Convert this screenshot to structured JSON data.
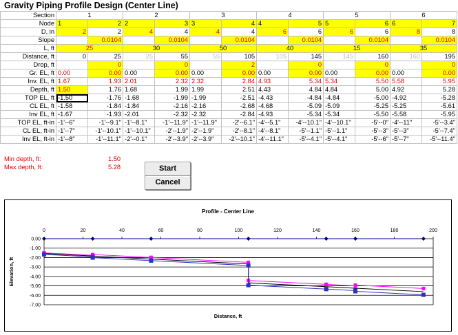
{
  "title": "Gravity Piping Profile Design (Center Line)",
  "row_labels": [
    "Section",
    "Node",
    "D, in",
    "Slope",
    "L, ft",
    "Distance, ft",
    "Drop, ft",
    "Gr. EL, ft",
    "Inv. EL, ft",
    "Depth, ft",
    "TOP EL, ft",
    "CL EL, ft",
    "Inv EL, ft",
    "TOP EL, ft-in",
    "CL EL, ft-in",
    "Inv EL, ft-in"
  ],
  "sections": [
    "1",
    "2",
    "3",
    "4",
    "5",
    "6"
  ],
  "nodes": [
    "1",
    "2",
    "2",
    "3",
    "3",
    "4",
    "4",
    "5",
    "5",
    "6",
    "6",
    "7"
  ],
  "d_in": [
    "2",
    "2",
    "4",
    "4",
    "4",
    "4",
    "6",
    "6",
    "6",
    "6",
    "8",
    "8"
  ],
  "slope": [
    "0.0104",
    "0.0104",
    "0.0104",
    "0.0104",
    "0.0104",
    "0.0104"
  ],
  "l_ft": [
    "25",
    "30",
    "50",
    "40",
    "15",
    "35"
  ],
  "distance": [
    "0",
    "25",
    "25",
    "55",
    "55",
    "105",
    "105",
    "145",
    "145",
    "160",
    "160",
    "195"
  ],
  "drop": [
    "0",
    "0",
    "2",
    "0",
    "0",
    "0"
  ],
  "gr_el": [
    "0.00",
    "0.00",
    "0.00",
    "0.00",
    "0.00",
    "0.00",
    "0.00",
    "0.00",
    "0.00",
    "0.00",
    "0.00",
    "0.00"
  ],
  "inv_el": [
    "1.67",
    "1.93",
    "2.01",
    "2.32",
    "2.32",
    "2.84",
    "4.93",
    "5.34",
    "5.34",
    "5.50",
    "5.58",
    "5.95"
  ],
  "depth": [
    "1.50",
    "1.76",
    "1.68",
    "1.99",
    "1.99",
    "2.51",
    "4.43",
    "4.84",
    "4.84",
    "5.00",
    "4.92",
    "5.28"
  ],
  "top_el": [
    "-1.50",
    "-1.76",
    "-1.68",
    "-1.99",
    "-1.99",
    "-2.51",
    "-4.43",
    "-4.84",
    "-4.84",
    "-5.00",
    "-4.92",
    "-5.28"
  ],
  "cl_el": [
    "-1.58",
    "-1.84",
    "-1.84",
    "-2.16",
    "-2.16",
    "-2.68",
    "-4.68",
    "-5.09",
    "-5.09",
    "-5.25",
    "-5.25",
    "-5.61"
  ],
  "inv_el2": [
    "-1.67",
    "-1.93",
    "-2.01",
    "-2.32",
    "-2.32",
    "-2.84",
    "-4.93",
    "-5.34",
    "-5.34",
    "-5.50",
    "-5.58",
    "-5.95"
  ],
  "top_ftin": [
    "-1'--6\"",
    "-1'--9.1\"",
    "-1'--8.1\"",
    "-1'--11.9\"",
    "-1'--11.9\"",
    "-2'--6.1\"",
    "-4'--5.1\"",
    "-4'--10.1\"",
    "-4'--10.1\"",
    "-5'--0\"",
    "-4'--11\"",
    "-5'--3.4\""
  ],
  "cl_ftin": [
    "-1'--7\"",
    "-1'--10.1\"",
    "-1'--10.1\"",
    "-2'--1.9\"",
    "-2'--1.9\"",
    "-2'--8.1\"",
    "-4'--8.1\"",
    "-5'--1.1\"",
    "-5'--1.1\"",
    "-5'--3\"",
    "-5'--3\"",
    "-5'--7.4\""
  ],
  "inv_ftin": [
    "-1'--8\"",
    "-1'--11.1\"",
    "-2'--0.1\"",
    "-2'--3.9\"",
    "-2'--3.9\"",
    "-2'--10.1\"",
    "-4'--11.1\"",
    "-5'--4.1\"",
    "-5'--4.1\"",
    "-5'--6\"",
    "-5'--7\"",
    "-5'--11.4\""
  ],
  "min_depth_label": "Min depth, ft:",
  "min_depth_value": "1.50",
  "max_depth_label": "Max depth, ft:",
  "max_depth_value": "5.28",
  "buttons": {
    "start": "Start",
    "cancel": "Cancel"
  },
  "colors": {
    "yellow": "#ffff00",
    "red": "#e00000",
    "grid": "#c0c0c0",
    "top_series": "#ff00ff",
    "cl_series": "#000000",
    "inv_series": "#3030c0",
    "ground_series": "#000080"
  },
  "chart_data": {
    "type": "line",
    "title": "Profile - Center Line",
    "xlabel": "Distance, ft",
    "ylabel": "Elevation, ft",
    "xlim": [
      0,
      200
    ],
    "ylim": [
      -7,
      0
    ],
    "xticks": [
      "0",
      "20",
      "40",
      "60",
      "80",
      "100",
      "120",
      "140",
      "160",
      "180",
      "200"
    ],
    "yticks": [
      "0.00",
      "-1.00",
      "-2.00",
      "-3.00",
      "-4.00",
      "-5.00",
      "-6.00",
      "-7.00"
    ],
    "x": [
      0,
      25,
      25,
      55,
      55,
      105,
      105,
      145,
      145,
      160,
      160,
      195
    ],
    "series": [
      {
        "values": [
          -1.5,
          -1.76,
          -1.68,
          -1.99,
          -1.99,
          -2.51,
          -4.43,
          -4.84,
          -4.84,
          -5.0,
          -4.92,
          -5.28
        ]
      },
      {
        "values": [
          -1.58,
          -1.84,
          -1.84,
          -2.16,
          -2.16,
          -2.68,
          -4.68,
          -5.09,
          -5.09,
          -5.25,
          -5.25,
          -5.61
        ]
      },
      {
        "values": [
          -1.67,
          -1.93,
          -2.01,
          -2.32,
          -2.32,
          -2.84,
          -4.93,
          -5.34,
          -5.34,
          -5.5,
          -5.58,
          -5.95
        ]
      }
    ],
    "ground": {
      "x": [
        0,
        25,
        55,
        105,
        145,
        160,
        195
      ],
      "values": [
        0,
        0,
        0,
        0,
        0,
        0,
        0
      ]
    },
    "grid": true,
    "x_axis_position": "top"
  }
}
